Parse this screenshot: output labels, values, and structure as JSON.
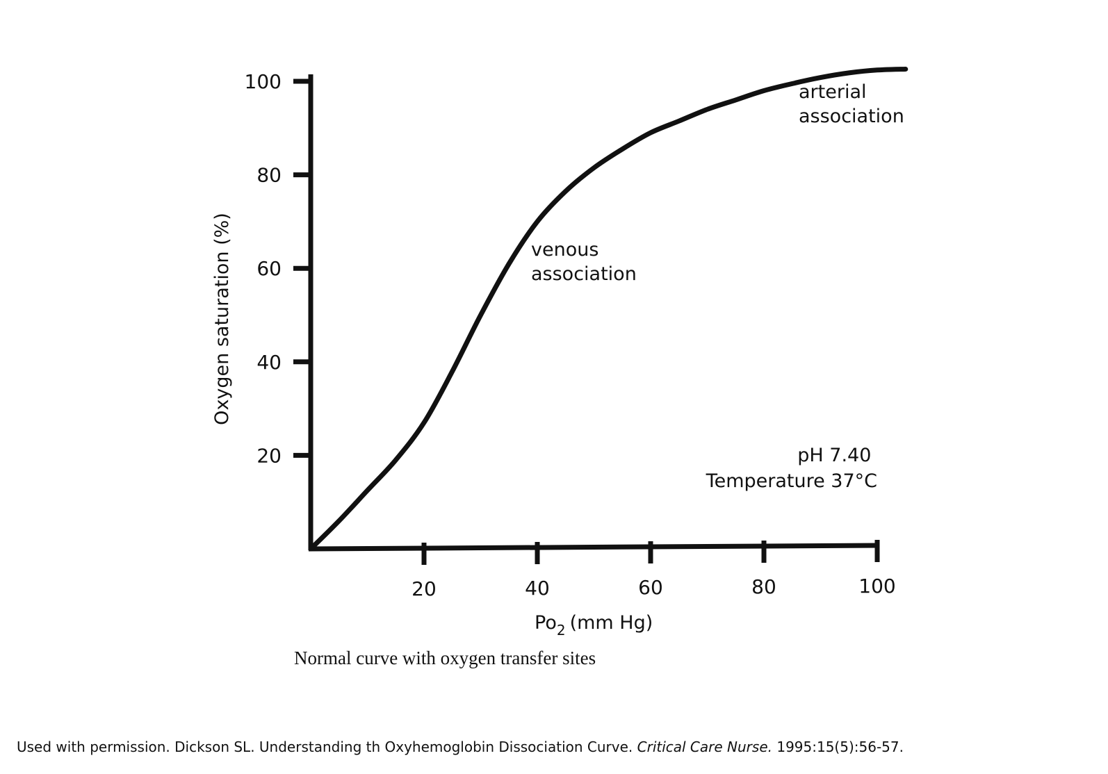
{
  "chart_data": {
    "type": "line",
    "title": "",
    "xlabel_main": "Po",
    "xlabel_sub": "2",
    "xlabel_unit": "(mm Hg)",
    "ylabel": "Oxygen saturation (%)",
    "xlim": [
      0,
      100
    ],
    "ylim": [
      0,
      100
    ],
    "xticks": [
      20,
      40,
      60,
      80,
      100
    ],
    "xtick_labels": [
      "20",
      "40",
      "60",
      "80",
      "100"
    ],
    "yticks": [
      20,
      40,
      60,
      80,
      100
    ],
    "ytick_labels": [
      "20",
      "40",
      "60",
      "80",
      "100"
    ],
    "grid": false,
    "series": [
      {
        "x": [
          0,
          5,
          10,
          15,
          20,
          25,
          30,
          35,
          40,
          45,
          50,
          55,
          60,
          65,
          70,
          75,
          80,
          85,
          90,
          95,
          100,
          105
        ],
        "y": [
          0,
          6,
          12.5,
          19,
          27,
          38,
          50,
          61,
          70,
          76.5,
          81.5,
          85.5,
          89,
          91.5,
          94,
          96,
          98,
          99.5,
          100.8,
          101.8,
          102.4,
          102.6
        ]
      }
    ],
    "annotations": [
      {
        "lines": [
          "venous",
          "association"
        ]
      },
      {
        "lines": [
          "arterial",
          "association"
        ]
      }
    ],
    "conditions": [
      "pH 7.40",
      "Temperature 37°C"
    ]
  },
  "caption": "Normal curve with oxygen transfer sites",
  "credit": {
    "prefix": "Used with permission. Dickson SL. Understanding th Oxyhemoglobin Dissociation Curve. ",
    "journal": "Critical Care Nurse.",
    "suffix": " 1995:15(5):56-57."
  }
}
